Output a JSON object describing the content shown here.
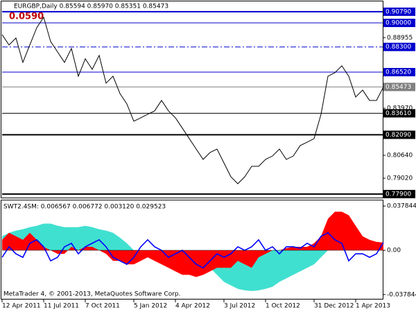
{
  "chart_data": [
    {
      "type": "line",
      "title": "EURGBP,Daily  0.85594 0.85970 0.85351 0.85473",
      "annotation": "0.0590",
      "categories": [
        "12 Apr 2011",
        null,
        null,
        null,
        null,
        null,
        "11 Jul 2011",
        null,
        null,
        null,
        null,
        null,
        "7 Oct 2011",
        null,
        null,
        null,
        null,
        null,
        null,
        "5 Jan 2012",
        null,
        null,
        null,
        null,
        null,
        "4 Apr 2012",
        null,
        null,
        null,
        null,
        null,
        null,
        "3 Jul 2012",
        null,
        null,
        null,
        null,
        null,
        "1 Oct 2012",
        null,
        null,
        null,
        null,
        null,
        null,
        "31 Dec 2012",
        null,
        null,
        null,
        null,
        null,
        "1 Apr 2013",
        null,
        null,
        null,
        null
      ],
      "series": [
        {
          "color": "#000000",
          "values": [
            0.8917,
            0.8844,
            0.8893,
            0.8721,
            0.8844,
            0.8966,
            0.904,
            0.8868,
            0.8795,
            0.8721,
            0.8819,
            0.8623,
            0.8746,
            0.8672,
            0.877,
            0.8574,
            0.8623,
            0.8501,
            0.8427,
            0.8305,
            0.8329,
            0.8354,
            0.8378,
            0.8452,
            0.8378,
            0.8329,
            0.8256,
            0.8182,
            0.8108,
            0.8035,
            0.8084,
            0.8108,
            0.801,
            0.7912,
            0.7863,
            0.7912,
            0.7986,
            0.7986,
            0.8035,
            0.8059,
            0.8108,
            0.8035,
            0.8059,
            0.8133,
            0.8157,
            0.8182,
            0.8354,
            0.8623,
            0.8648,
            0.8697,
            0.8623,
            0.8476,
            0.8525,
            0.8452,
            0.8452,
            0.8547
          ]
        }
      ],
      "ylim": [
        0.7765,
        0.9157
      ],
      "yticks": [
        0.88955,
        {
          "value": 0.8397,
          "label": "0.83970"
        },
        {
          "value": 0.8064,
          "label": "0.80640"
        },
        {
          "value": 0.7902,
          "label": "0.79020"
        }
      ],
      "levels": [
        {
          "value": 0.9079,
          "label": "0.90790",
          "color": "#0000cc"
        },
        {
          "value": 0.9,
          "label": "0.90000",
          "color": "#0000cc"
        },
        {
          "value": 0.883,
          "label": "0.88300",
          "color": "#0000cc"
        },
        {
          "value": 0.8652,
          "label": "0.86520",
          "color": "#0000cc"
        },
        {
          "value": 0.85473,
          "label": "0.85473",
          "color": "#808080"
        },
        {
          "value": 0.8361,
          "label": "0.83610",
          "color": "#000000"
        },
        {
          "value": 0.8209,
          "label": "0.82090",
          "color": "#000000"
        },
        {
          "value": 0.779,
          "label": "0.77900",
          "color": "#000000"
        }
      ]
    },
    {
      "type": "area",
      "title": "SWT2.4SM: 0.006567 0.006772 0.003120 0.029523",
      "annotation": "MetaTrader 4, © 2001-2013, MetaQuotes Software Corp.",
      "series": [
        {
          "color": "#40e0d0",
          "values": [
            0.012,
            0.015,
            0.0168,
            0.018,
            0.0198,
            0.021,
            0.0228,
            0.0228,
            0.021,
            0.0198,
            0.0198,
            0.0198,
            0.021,
            0.0198,
            0.018,
            0.0168,
            0.015,
            0.0108,
            0.006,
            0,
            -0.003,
            -0.006,
            -0.0072,
            -0.009,
            -0.009,
            -0.009,
            -0.0072,
            -0.006,
            -0.0048,
            -0.009,
            -0.015,
            -0.021,
            -0.027,
            -0.03,
            -0.033,
            -0.0342,
            -0.0348,
            -0.0342,
            -0.033,
            -0.0312,
            -0.027,
            -0.024,
            -0.021,
            -0.018,
            -0.015,
            -0.012,
            -0.006,
            0,
            0.003,
            0.0048,
            0.006,
            0.0072,
            0.006,
            0.0048,
            0.0036,
            0.003
          ]
        },
        {
          "color": "#ff0000",
          "values": [
            0.009,
            0.015,
            0.012,
            0.009,
            0.015,
            0.009,
            0.003,
            0,
            -0.003,
            -0.003,
            0.003,
            0,
            0.003,
            0.003,
            0,
            -0.003,
            -0.009,
            -0.009,
            -0.012,
            -0.012,
            -0.009,
            -0.006,
            -0.009,
            -0.012,
            -0.015,
            -0.018,
            -0.021,
            -0.021,
            -0.0228,
            -0.021,
            -0.018,
            -0.015,
            -0.015,
            -0.015,
            -0.009,
            -0.012,
            -0.015,
            -0.006,
            -0.003,
            0,
            0,
            0.0018,
            0.003,
            0.003,
            0.003,
            0.006,
            0.012,
            0.027,
            0.033,
            0.033,
            0.03,
            0.021,
            0.012,
            0.009,
            0.0072,
            0.0066
          ]
        },
        {
          "color": "#0000ff",
          "line": true,
          "values": [
            -0.006,
            0.003,
            -0.003,
            -0.006,
            0.006,
            0.009,
            0.003,
            -0.009,
            -0.006,
            0.003,
            0.006,
            -0.003,
            0.003,
            0.006,
            0.009,
            0.003,
            -0.006,
            -0.009,
            -0.012,
            -0.006,
            0.003,
            0.009,
            0.003,
            0,
            -0.006,
            -0.003,
            0,
            -0.006,
            -0.012,
            -0.015,
            -0.009,
            -0.003,
            -0.006,
            -0.003,
            0.003,
            0,
            0.003,
            0.009,
            0,
            0.003,
            -0.003,
            0.003,
            0.003,
            0.0018,
            0.006,
            0.003,
            0.012,
            0.015,
            0.009,
            0.006,
            -0.009,
            -0.003,
            -0.003,
            -0.006,
            -0.003,
            0.0066
          ]
        }
      ],
      "ylim": [
        -0.0415,
        0.0427
      ],
      "yticks": [
        0.037844,
        {
          "value": 0,
          "label": "0.00"
        },
        -0.037844
      ]
    }
  ]
}
